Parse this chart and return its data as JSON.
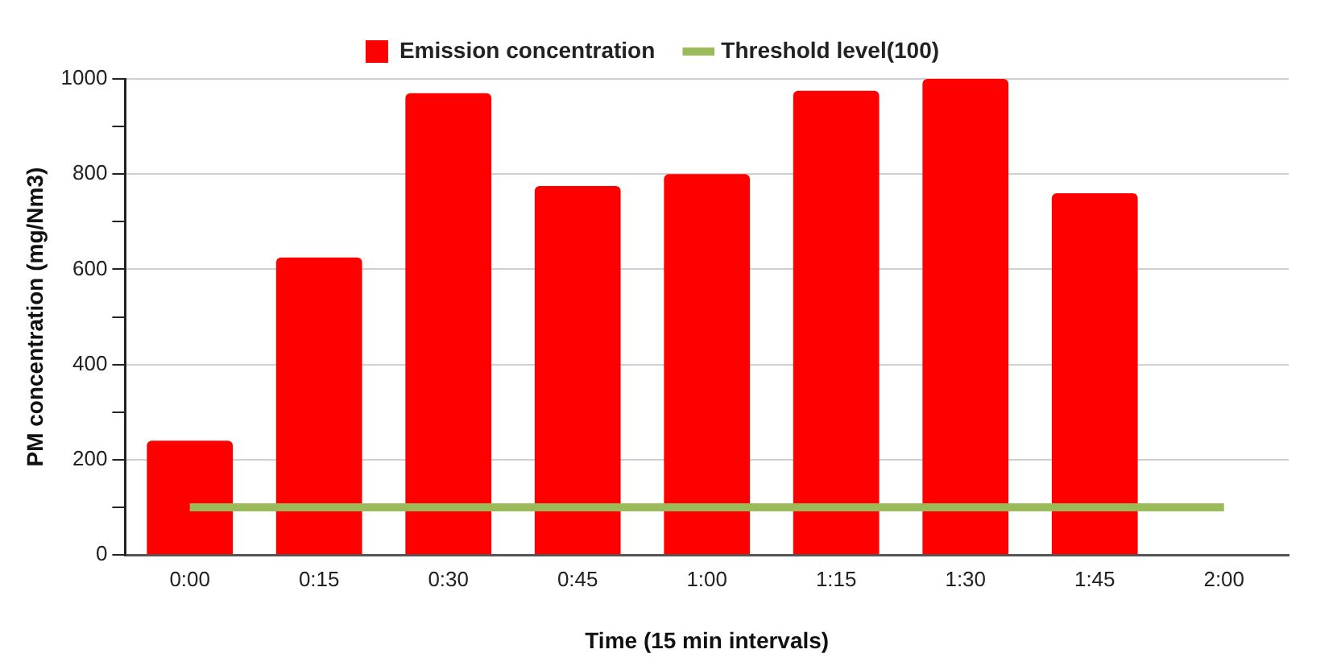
{
  "chart_data": {
    "type": "bar",
    "xlabel": "Time (15 min intervals)",
    "ylabel": "PM concentration (mg/Nm3)",
    "categories": [
      "0:00",
      "0:15",
      "0:30",
      "0:45",
      "1:00",
      "1:15",
      "1:30",
      "1:45",
      "2:00"
    ],
    "series": [
      {
        "name": "Emission concentration",
        "color": "#ff0000",
        "values": [
          240,
          625,
          970,
          775,
          800,
          975,
          1000,
          760,
          null
        ]
      },
      {
        "name": "Threshold level(100)",
        "type": "line",
        "color": "#9bbb59",
        "values": [
          100,
          100,
          100,
          100,
          100,
          100,
          100,
          100,
          100
        ]
      }
    ],
    "ylim": [
      0,
      1000
    ],
    "yticks": [
      0,
      {
        "value": 100,
        "label": null
      },
      200,
      {
        "value": 300,
        "label": null
      },
      400,
      {
        "value": 500,
        "label": null
      },
      600,
      {
        "value": 700,
        "label": null
      },
      800,
      {
        "value": 900,
        "label": null
      },
      1000
    ],
    "grid": "y",
    "legend": "top",
    "marker": "none"
  }
}
